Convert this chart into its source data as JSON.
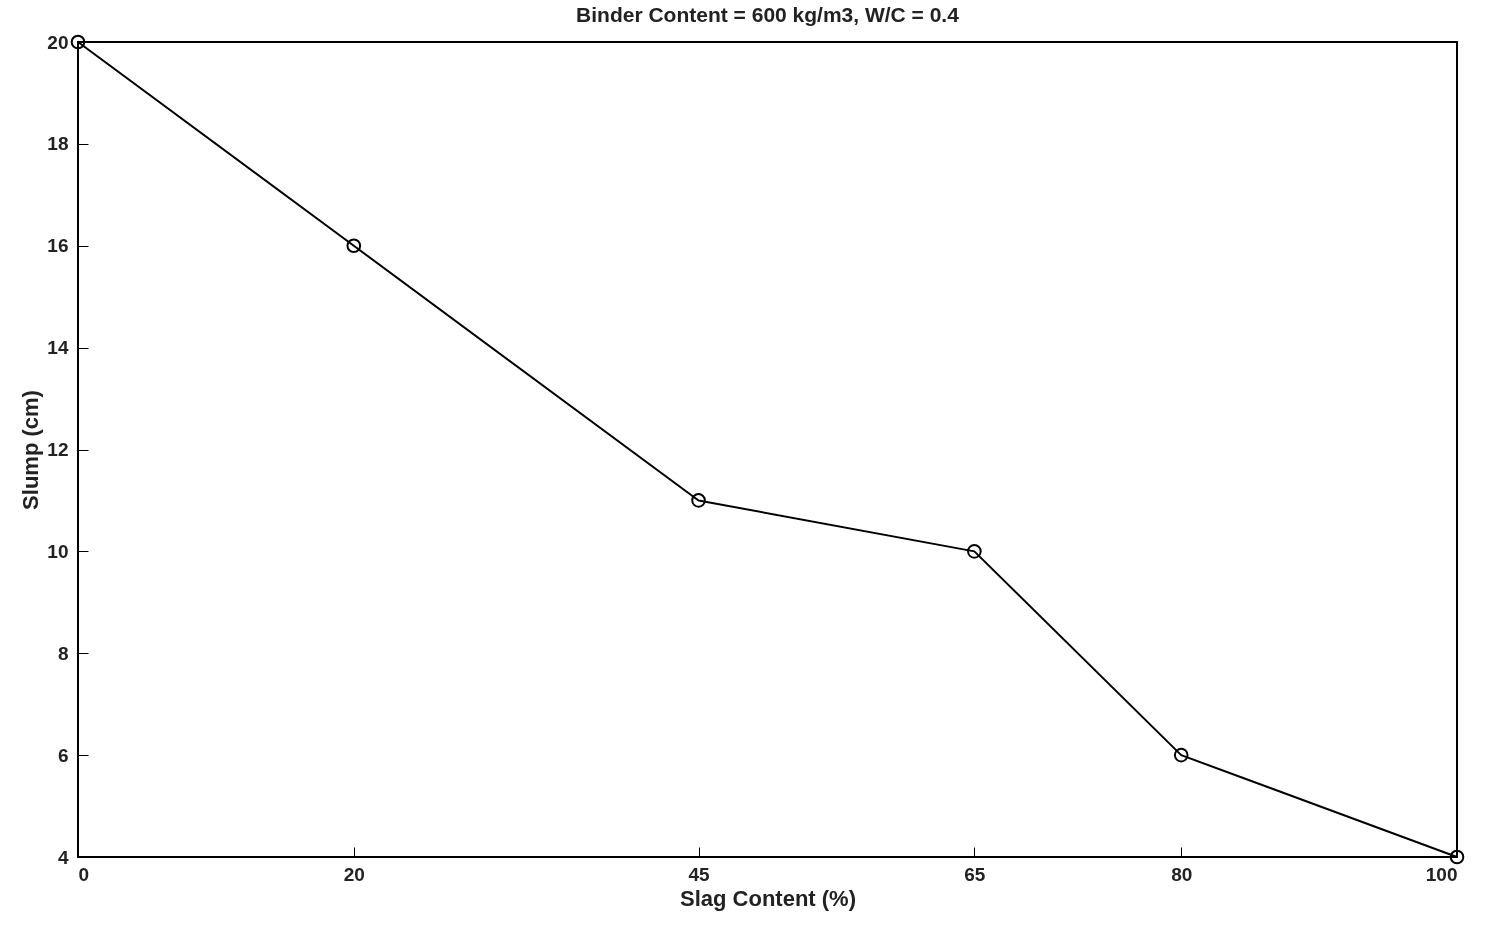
{
  "chart_data": {
    "type": "line",
    "title": "Binder Content = 600 kg/m3, W/C = 0.4",
    "xlabel": "Slag Content (%)",
    "ylabel": "Slump (cm)",
    "x": [
      0,
      20,
      45,
      65,
      80,
      100
    ],
    "series": [
      {
        "color": "#000000",
        "values": [
          20,
          16,
          11,
          10,
          6,
          4
        ]
      }
    ],
    "xlim": [
      0,
      100
    ],
    "xticks": [
      0,
      20,
      45,
      65,
      80,
      100
    ],
    "ylim": [
      4,
      20
    ],
    "yticks": [
      4,
      6,
      8,
      10,
      12,
      14,
      16,
      18,
      20
    ],
    "grid": false,
    "marker": "circle",
    "line_style": "solid"
  }
}
